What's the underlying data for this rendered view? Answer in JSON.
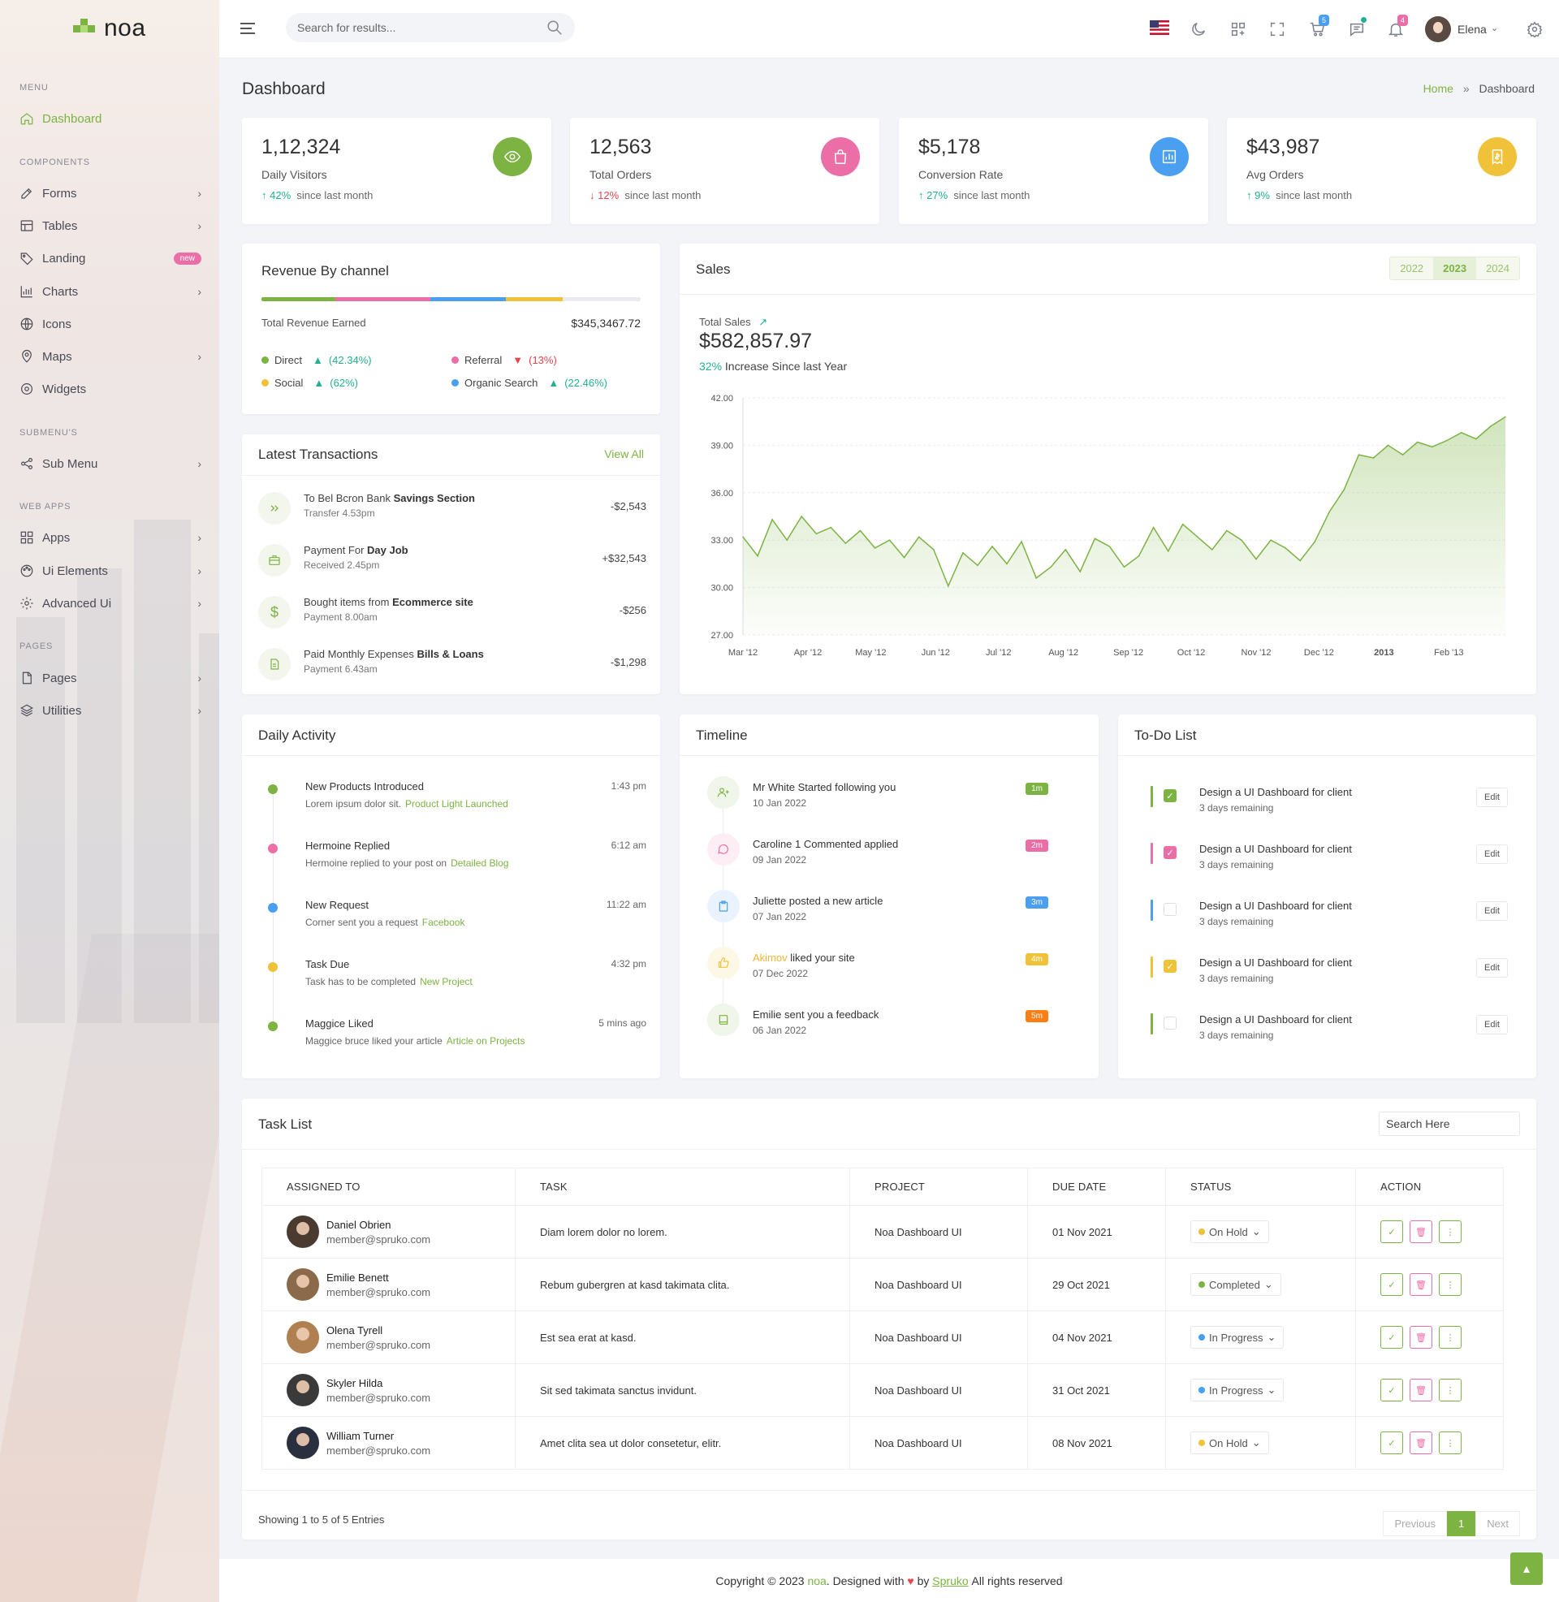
{
  "brand": {
    "name": "noa",
    "accent": "#7cb342"
  },
  "sidebar": {
    "categories": [
      "MENU",
      "COMPONENTS",
      "SUBMENU'S",
      "WEB APPS",
      "PAGES"
    ],
    "items": [
      {
        "label": "Dashboard",
        "icon": "home-icon"
      },
      {
        "label": "Forms",
        "icon": "forms-icon"
      },
      {
        "label": "Tables",
        "icon": "table-icon"
      },
      {
        "label": "Landing",
        "icon": "tag-icon",
        "badge": "new"
      },
      {
        "label": "Charts",
        "icon": "chart-icon"
      },
      {
        "label": "Icons",
        "icon": "globe-icon"
      },
      {
        "label": "Maps",
        "icon": "map-pin-icon"
      },
      {
        "label": "Widgets",
        "icon": "gear-icon"
      },
      {
        "label": "Sub Menu",
        "icon": "share-icon"
      },
      {
        "label": "Apps",
        "icon": "apps-icon"
      },
      {
        "label": "Ui Elements",
        "icon": "palette-icon"
      },
      {
        "label": "Advanced Ui",
        "icon": "settings-icon"
      },
      {
        "label": "Pages",
        "icon": "file-icon"
      },
      {
        "label": "Utilities",
        "icon": "layers-icon"
      }
    ]
  },
  "header": {
    "search_placeholder": "Search for results...",
    "cart_count": "5",
    "notification_count": "4",
    "user": "Elena"
  },
  "page": {
    "title": "Dashboard",
    "breadcrumb_home": "Home",
    "breadcrumb_sep": "»",
    "breadcrumb_current": "Dashboard"
  },
  "stats": [
    {
      "value": "1,12,324",
      "label": "Daily Visitors",
      "change": "42%",
      "direction": "up",
      "suffix": "since last month",
      "color": "#7cb342",
      "icon": "eye-icon"
    },
    {
      "value": "12,563",
      "label": "Total Orders",
      "change": "12%",
      "direction": "down",
      "suffix": "since last month",
      "color": "#ec6ea6",
      "icon": "shopping-bag-icon"
    },
    {
      "value": "$5,178",
      "label": "Conversion Rate",
      "change": "27%",
      "direction": "up",
      "suffix": "since last month",
      "color": "#4a9ff0",
      "icon": "bar-chart-icon"
    },
    {
      "value": "$43,987",
      "label": "Avg Orders",
      "change": "9%",
      "direction": "up",
      "suffix": "since last month",
      "color": "#f0c239",
      "icon": "receipt-icon"
    }
  ],
  "revenue": {
    "title": "Revenue By channel",
    "total_label": "Total Revenue Earned",
    "total_value": "$345,3467.72",
    "segments": [
      {
        "name": "Direct",
        "share": 0.195,
        "color": "#7cb342"
      },
      {
        "name": "Referral",
        "share": 0.25,
        "color": "#ec6ea6"
      },
      {
        "name": "Organic Search",
        "share": 0.2,
        "color": "#4a9ff0"
      },
      {
        "name": "Social",
        "share": 0.15,
        "color": "#f0c239"
      }
    ],
    "legend": [
      {
        "name": "Direct",
        "pct": "(42.34%)",
        "dir": "up",
        "color": "#7cb342"
      },
      {
        "name": "Referral",
        "pct": "(13%)",
        "dir": "down",
        "color": "#ec6ea6"
      },
      {
        "name": "Social",
        "pct": "(62%)",
        "dir": "up",
        "color": "#f0c239"
      },
      {
        "name": "Organic Search",
        "pct": "(22.46%)",
        "dir": "up",
        "color": "#4a9ff0"
      }
    ]
  },
  "transactions": {
    "title": "Latest Transactions",
    "view_all": "View All",
    "items": [
      {
        "text": "To Bel Bcron Bank",
        "bold": "Savings Section",
        "sub": "Transfer 4.53pm",
        "amount": "-$2,543",
        "icon": "double-chevron-icon"
      },
      {
        "text": "Payment For",
        "bold": "Day Job",
        "sub": "Received 2.45pm",
        "amount": "+$32,543",
        "icon": "briefcase-icon"
      },
      {
        "text": "Bought items from",
        "bold": "Ecommerce site",
        "sub": "Payment 8.00am",
        "amount": "-$256",
        "icon": "dollar-icon"
      },
      {
        "text": "Paid Monthly Expenses",
        "bold": "Bills & Loans",
        "sub": "Payment 6.43am",
        "amount": "-$1,298",
        "icon": "document-icon"
      }
    ]
  },
  "sales": {
    "title": "Sales",
    "years": [
      "2022",
      "2023",
      "2024"
    ],
    "active_year": "2023",
    "total_label": "Total Sales",
    "total_value": "$582,857.97",
    "increase_pct": "32%",
    "increase_text": "Increase Since last Year"
  },
  "chart_data": {
    "type": "area",
    "color": "#7cb342",
    "ylim": [
      27,
      42
    ],
    "yticks": [
      "42.00",
      "39.00",
      "36.00",
      "33.00",
      "30.00",
      "27.00"
    ],
    "xticks": [
      "Mar '12",
      "Apr '12",
      "May '12",
      "Jun '12",
      "Jul '12",
      "Aug '12",
      "Sep '12",
      "Oct '12",
      "Nov '12",
      "Dec '12",
      "2013",
      "Feb '13"
    ],
    "x": [
      "2012-03-01",
      "2012-03-08",
      "2012-03-15",
      "2012-03-22",
      "2012-03-29",
      "2012-04-05",
      "2012-04-12",
      "2012-04-19",
      "2012-04-26",
      "2012-05-03",
      "2012-05-10",
      "2012-05-17",
      "2012-05-24",
      "2012-05-31",
      "2012-06-07",
      "2012-06-14",
      "2012-06-21",
      "2012-06-28",
      "2012-07-05",
      "2012-07-12",
      "2012-07-19",
      "2012-07-26",
      "2012-08-02",
      "2012-08-09",
      "2012-08-16",
      "2012-08-23",
      "2012-08-30",
      "2012-09-06",
      "2012-09-13",
      "2012-09-20",
      "2012-09-27",
      "2012-10-04",
      "2012-10-11",
      "2012-10-18",
      "2012-10-25",
      "2012-11-01",
      "2012-11-08",
      "2012-11-15",
      "2012-11-22",
      "2012-11-29",
      "2012-12-06",
      "2012-12-13",
      "2012-12-20",
      "2012-12-27",
      "2013-01-03",
      "2013-01-10",
      "2013-01-17",
      "2013-01-24",
      "2013-01-31",
      "2013-02-07",
      "2013-02-14",
      "2013-02-21",
      "2013-02-28"
    ],
    "values": [
      33.2,
      32.0,
      34.3,
      33.0,
      34.5,
      33.4,
      33.8,
      32.8,
      33.6,
      32.5,
      33.0,
      31.9,
      33.2,
      32.4,
      30.1,
      32.2,
      31.4,
      32.6,
      31.5,
      32.9,
      30.6,
      31.3,
      32.4,
      31.0,
      33.1,
      32.6,
      31.3,
      32.0,
      33.8,
      32.3,
      34.0,
      33.2,
      32.4,
      33.6,
      33.0,
      31.8,
      33.0,
      32.5,
      31.7,
      32.9,
      34.8,
      36.2,
      38.4,
      38.2,
      39.0,
      38.4,
      39.2,
      38.9,
      39.3,
      39.8,
      39.4,
      40.2,
      40.8
    ]
  },
  "daily_activity": {
    "title": "Daily Activity",
    "items": [
      {
        "title": "New Products Introduced",
        "text": "Lorem ipsum dolor sit.",
        "link": "Product Light Launched",
        "time": "1:43 pm",
        "color": "#7cb342"
      },
      {
        "title": "Hermoine Replied",
        "text": "Hermoine replied to your post on",
        "link": "Detailed Blog",
        "time": "6:12 am",
        "color": "#ec6ea6"
      },
      {
        "title": "New Request",
        "text": "Corner sent you a request",
        "link": "Facebook",
        "time": "11:22 am",
        "color": "#4a9ff0"
      },
      {
        "title": "Task Due",
        "text": "Task has to be completed",
        "link": "New Project",
        "time": "4:32 pm",
        "color": "#f0c239"
      },
      {
        "title": "Maggice Liked",
        "text": "Maggice bruce liked your article",
        "link": "Article on Projects",
        "time": "5 mins ago",
        "color": "#7cb342"
      }
    ]
  },
  "timeline": {
    "title": "Timeline",
    "items": [
      {
        "highlight": "",
        "text": "Mr White Started following you",
        "date": "10 Jan 2022",
        "badge": "1m",
        "color": "#7cb342",
        "bg": "#f1f6ea",
        "icon": "user-plus-icon"
      },
      {
        "highlight": "",
        "text": "Caroline 1 Commented applied",
        "date": "09 Jan 2022",
        "badge": "2m",
        "color": "#ec6ea6",
        "bg": "#fdeef5",
        "icon": "comment-icon"
      },
      {
        "highlight": "",
        "text": "Juliette posted a new article",
        "date": "07 Jan 2022",
        "badge": "3m",
        "color": "#4a9ff0",
        "bg": "#eaf3fd",
        "icon": "clipboard-icon"
      },
      {
        "highlight": "Akimov",
        "text": " liked your site",
        "date": "07 Dec 2022",
        "badge": "4m",
        "color": "#f0c239",
        "bg": "#fdf7e6",
        "icon": "thumbs-up-icon"
      },
      {
        "highlight": "",
        "text": "Emilie sent you a feedback",
        "date": "06 Jan 2022",
        "badge": "5m",
        "color": "#7cb342",
        "bg": "#f1f6ea",
        "badge_color": "#fd7e14",
        "icon": "book-icon"
      }
    ]
  },
  "todo": {
    "title": "To-Do List",
    "edit_label": "Edit",
    "items": [
      {
        "title": "Design a UI Dashboard for client",
        "sub": "3 days remaining",
        "checked": true,
        "color": "#7cb342"
      },
      {
        "title": "Design a UI Dashboard for client",
        "sub": "3 days remaining",
        "checked": true,
        "color": "#ec6ea6"
      },
      {
        "title": "Design a UI Dashboard for client",
        "sub": "3 days remaining",
        "checked": false,
        "color": "#4a9ff0"
      },
      {
        "title": "Design a UI Dashboard for client",
        "sub": "3 days remaining",
        "checked": true,
        "color": "#f0c239"
      },
      {
        "title": "Design a UI Dashboard for client",
        "sub": "3 days remaining",
        "checked": false,
        "color": "#7cb342"
      }
    ]
  },
  "task_list": {
    "title": "Task List",
    "search_placeholder": "Search Here",
    "columns": [
      "ASSIGNED TO",
      "TASK",
      "PROJECT",
      "DUE DATE",
      "STATUS",
      "ACTION"
    ],
    "rows": [
      {
        "name": "Daniel Obrien",
        "email": "member@spruko.com",
        "task": "Diam lorem dolor no lorem.",
        "project": "Noa Dashboard UI",
        "due": "01 Nov 2021",
        "status": "On Hold",
        "status_color": "#f0c239",
        "avatar_color": "#4a3a30"
      },
      {
        "name": "Emilie Benett",
        "email": "member@spruko.com",
        "task": "Rebum gubergren at kasd takimata clita.",
        "project": "Noa Dashboard UI",
        "due": "29 Oct 2021",
        "status": "Completed",
        "status_color": "#7cb342",
        "avatar_color": "#8a6a4a"
      },
      {
        "name": "Olena Tyrell",
        "email": "member@spruko.com",
        "task": "Est sea erat at kasd.",
        "project": "Noa Dashboard UI",
        "due": "04 Nov 2021",
        "status": "In Progress",
        "status_color": "#4a9ff0",
        "avatar_color": "#b08050"
      },
      {
        "name": "Skyler Hilda",
        "email": "member@spruko.com",
        "task": "Sit sed takimata sanctus invidunt.",
        "project": "Noa Dashboard UI",
        "due": "31 Oct 2021",
        "status": "In Progress",
        "status_color": "#4a9ff0",
        "avatar_color": "#3a3a3a"
      },
      {
        "name": "William Turner",
        "email": "member@spruko.com",
        "task": "Amet clita sea ut dolor consetetur, elitr.",
        "project": "Noa Dashboard UI",
        "due": "08 Nov 2021",
        "status": "On Hold",
        "status_color": "#f0c239",
        "avatar_color": "#2a3040"
      }
    ],
    "showing": "Showing 1 to 5 of 5 Entries",
    "pager": {
      "prev": "Previous",
      "page": "1",
      "next": "Next"
    }
  },
  "footer": {
    "prefix": "Copyright © 2023",
    "brand": "noa",
    "mid": ". Designed with",
    "heart": "♥",
    "by": "by",
    "company": "Spruko",
    "suffix": "All rights reserved"
  }
}
